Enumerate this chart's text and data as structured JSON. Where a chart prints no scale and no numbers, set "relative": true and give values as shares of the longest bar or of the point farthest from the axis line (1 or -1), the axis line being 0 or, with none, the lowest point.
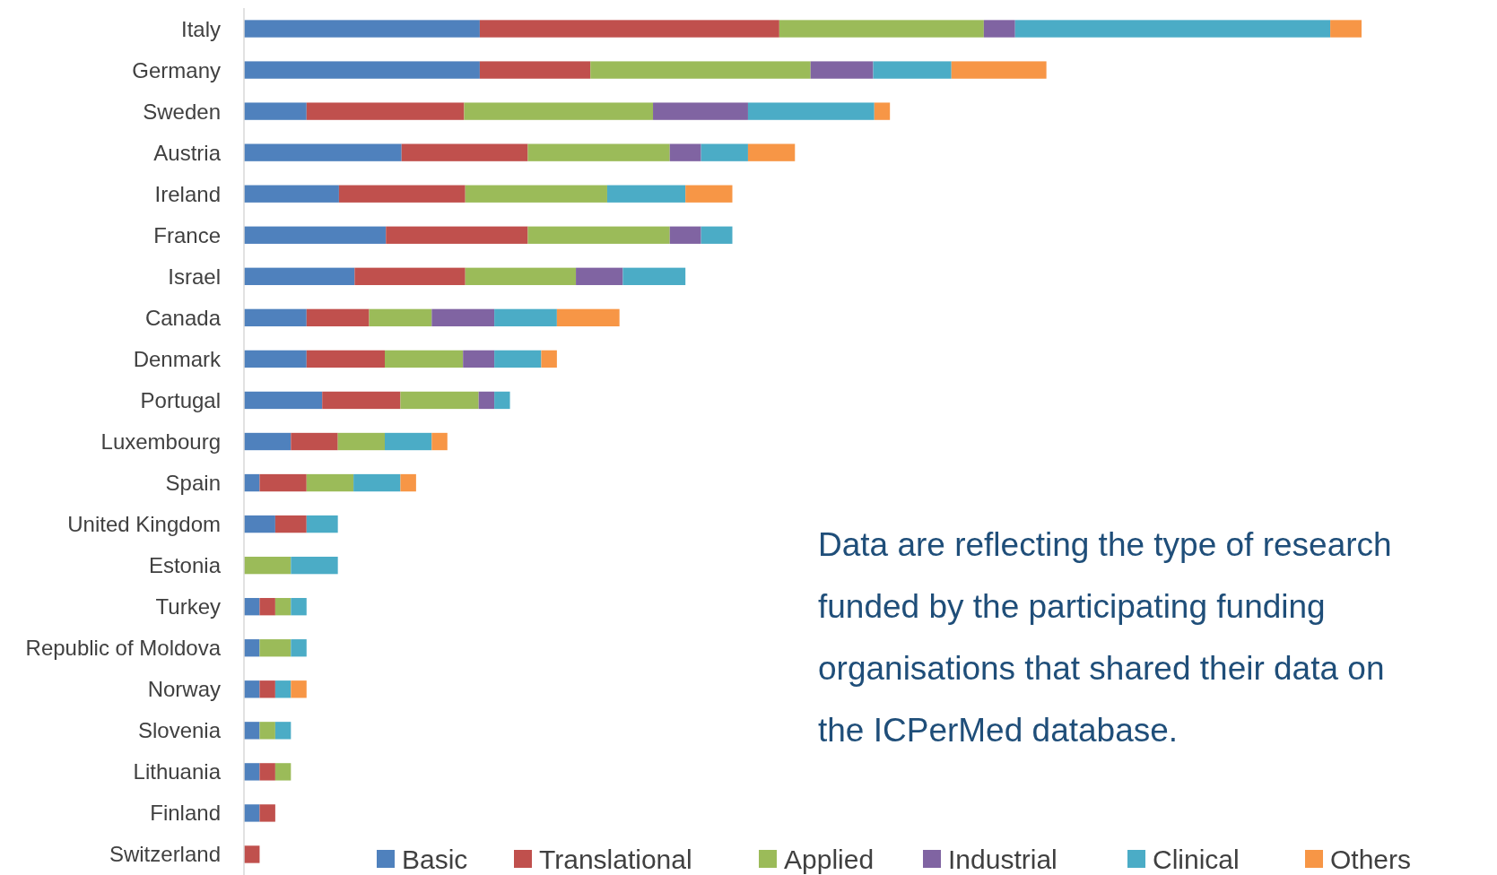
{
  "chart_data": {
    "type": "bar",
    "orientation": "horizontal",
    "stacked": true,
    "relative": true,
    "legend": "bottom",
    "categories": [
      "Italy",
      "Germany",
      "Sweden",
      "Austria",
      "Ireland",
      "France",
      "Israel",
      "Canada",
      "Denmark",
      "Portugal",
      "Luxembourg",
      "Spain",
      "United Kingdom",
      "Estonia",
      "Turkey",
      "Republic of Moldova",
      "Norway",
      "Slovenia",
      "Lithuania",
      "Finland",
      "Switzerland"
    ],
    "series": [
      {
        "name": "Basic",
        "color": "#4f81bd",
        "values": [
          0.211,
          0.211,
          0.056,
          0.141,
          0.085,
          0.127,
          0.099,
          0.056,
          0.056,
          0.07,
          0.042,
          0.014,
          0.028,
          0,
          0.014,
          0.014,
          0.014,
          0.014,
          0.014,
          0.014,
          0
        ]
      },
      {
        "name": "Translational",
        "color": "#c0504d",
        "values": [
          0.268,
          0.099,
          0.141,
          0.113,
          0.113,
          0.127,
          0.099,
          0.056,
          0.07,
          0.07,
          0.042,
          0.042,
          0.028,
          0,
          0.014,
          0,
          0.014,
          0,
          0.014,
          0.014,
          0.014
        ]
      },
      {
        "name": "Applied",
        "color": "#9bbb59",
        "values": [
          0.183,
          0.197,
          0.169,
          0.127,
          0.127,
          0.127,
          0.099,
          0.056,
          0.07,
          0.07,
          0.042,
          0.042,
          0,
          0.042,
          0.014,
          0.028,
          0,
          0.014,
          0.014,
          0,
          0
        ]
      },
      {
        "name": "Industrial",
        "color": "#8064a2",
        "values": [
          0.028,
          0.056,
          0.085,
          0.028,
          0,
          0.028,
          0.042,
          0.056,
          0.028,
          0.014,
          0,
          0,
          0,
          0,
          0,
          0,
          0,
          0,
          0,
          0,
          0
        ]
      },
      {
        "name": "Clinical",
        "color": "#4bacc6",
        "values": [
          0.282,
          0.07,
          0.113,
          0.042,
          0.07,
          0.028,
          0.056,
          0.056,
          0.042,
          0.014,
          0.042,
          0.042,
          0.028,
          0.042,
          0.014,
          0.014,
          0.014,
          0.014,
          0,
          0,
          0
        ]
      },
      {
        "name": "Others",
        "color": "#f79646",
        "values": [
          0.028,
          0.085,
          0.014,
          0.042,
          0.042,
          0,
          0,
          0.056,
          0.014,
          0,
          0.014,
          0.014,
          0,
          0,
          0,
          0,
          0.014,
          0,
          0,
          0,
          0
        ]
      }
    ],
    "annotations": [
      "Data are reflecting the type of research funded by the participating funding organisations that shared their data on the ICPerMed database."
    ]
  }
}
